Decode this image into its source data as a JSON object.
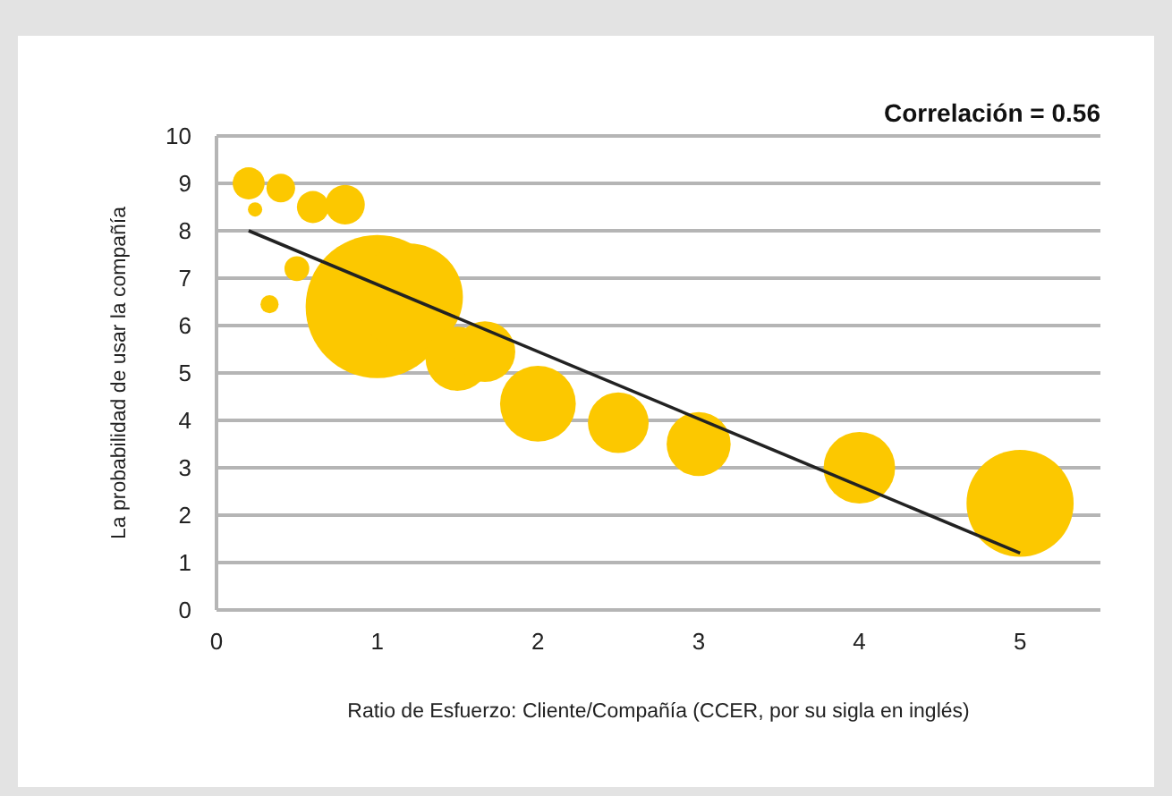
{
  "chart_data": {
    "type": "bubble",
    "title": "Correlación = 0.56",
    "xlabel": "Ratio de Esfuerzo: Cliente/Compañía (CCER, por su sigla en inglés)",
    "ylabel": "La probabilidad de usar la compañía",
    "xlim": [
      0,
      5.5
    ],
    "xticks": [
      0,
      1,
      2,
      3,
      4,
      5
    ],
    "ylim": [
      0,
      10
    ],
    "yticks": [
      0,
      1,
      2,
      3,
      4,
      5,
      6,
      7,
      8,
      9,
      10
    ],
    "grid": "y",
    "series": [
      {
        "color": "#fcc800",
        "x": [
          0.2,
          0.24,
          0.4,
          0.6,
          0.8,
          0.33,
          0.5,
          1.0,
          1.2,
          1.5,
          1.67,
          2.0,
          2.5,
          3.0,
          4.0,
          5.0
        ],
        "values": [
          9.0,
          8.45,
          8.9,
          8.5,
          8.55,
          6.45,
          7.2,
          6.4,
          6.6,
          5.3,
          5.45,
          4.35,
          3.95,
          3.5,
          3.0,
          2.25
        ],
        "sizes": [
          0.05,
          0.01,
          0.04,
          0.05,
          0.076,
          0.016,
          0.03,
          1,
          0.56,
          0.2,
          0.18,
          0.28,
          0.18,
          0.2,
          0.25,
          0.56
        ]
      },
      {
        "type": "line",
        "color": "#222222",
        "x": [
          0.2,
          5.0
        ],
        "values": [
          8.0,
          1.2
        ]
      }
    ]
  }
}
